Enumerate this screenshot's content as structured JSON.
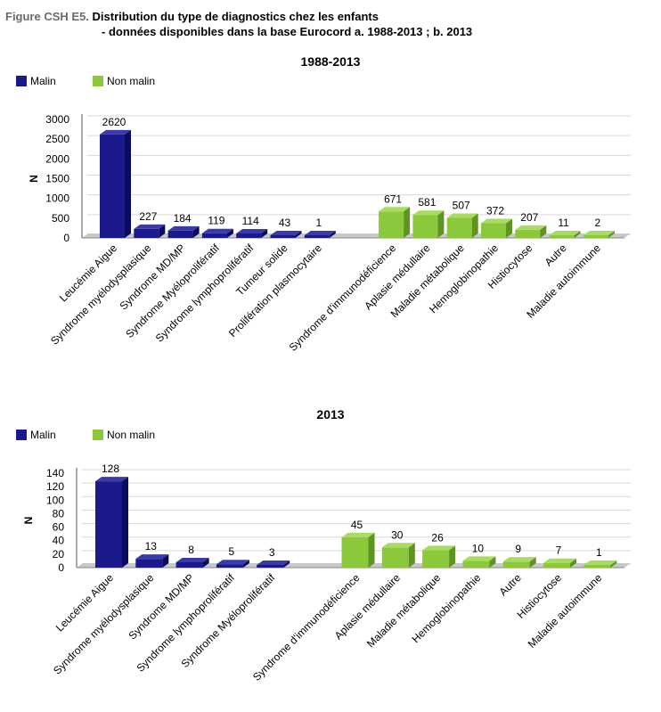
{
  "figure": {
    "label": "Figure CSH E5.",
    "title_line1": "Distribution du type de diagnostics chez les enfants",
    "title_line2": "- données disponibles dans la base Eurocord a. 1988-2013 ; b. 2013"
  },
  "colors": {
    "malin": "#1a1a8c",
    "malin_side": "#0b0b5c",
    "malin_top": "#3a3aa8",
    "non_malin": "#8cc83c",
    "non_malin_side": "#5f9422",
    "non_malin_top": "#a8dc60",
    "grid": "#d9d9d9",
    "floor": "#c8c8c8"
  },
  "chart_data": [
    {
      "type": "bar",
      "title": "1988-2013",
      "ylabel": "N",
      "ylim": [
        0,
        3000
      ],
      "yticks": [
        0,
        500,
        1000,
        1500,
        2000,
        2500,
        3000
      ],
      "legend": [
        "Malin",
        "Non malin"
      ],
      "legend_position": "top-left",
      "categories": [
        "Leucémie Aigue",
        "Syndrome myélodysplasique",
        "Syndrome MD/MP",
        "Syndrome Myéloprolifératif",
        "Syndrome lymphoprolifératif",
        "Tumeur solide",
        "Prolifération plasmocytaire",
        "Syndrome d'immunodéficience",
        "Aplasie médullaire",
        "Maladie métabolique",
        "Hemoglobinopathie",
        "Histiocytose",
        "Autre",
        "Maladie autoimmune"
      ],
      "values": [
        2620,
        227,
        184,
        119,
        114,
        43,
        1,
        671,
        581,
        507,
        372,
        207,
        11,
        2
      ],
      "value_labels": [
        "2620",
        "227",
        "184",
        "119",
        "114",
        "43",
        "1",
        "671",
        "581",
        "507",
        "372",
        "207",
        "11",
        "2"
      ],
      "groups": [
        "Malin",
        "Malin",
        "Malin",
        "Malin",
        "Malin",
        "Malin",
        "Malin",
        "Non malin",
        "Non malin",
        "Non malin",
        "Non malin",
        "Non malin",
        "Non malin",
        "Non malin"
      ]
    },
    {
      "type": "bar",
      "title": "2013",
      "ylabel": "N",
      "ylim": [
        0,
        140
      ],
      "yticks": [
        0,
        20,
        40,
        60,
        80,
        100,
        120,
        140
      ],
      "legend": [
        "Malin",
        "Non malin"
      ],
      "legend_position": "top-left",
      "categories": [
        "Leucémie Aigue",
        "Syndrome myélodysplasique",
        "Syndrome MD/MP",
        "Syndrome lymphoprolifératif",
        "Syndrome Myéloprolifératif",
        "Syndrome d'immunodéficience",
        "Aplasie médullaire",
        "Maladie métabolique",
        "Hemoglobinopathie",
        "Autre",
        "Histiocytose",
        "Maladie autoimmune"
      ],
      "values": [
        128,
        13,
        8,
        5,
        3,
        45,
        30,
        26,
        10,
        9,
        7,
        1
      ],
      "value_labels": [
        "128",
        "13",
        "8",
        "5",
        "3",
        "45",
        "30",
        "26",
        "10",
        "9",
        "7",
        "1"
      ],
      "groups": [
        "Malin",
        "Malin",
        "Malin",
        "Malin",
        "Malin",
        "Non malin",
        "Non malin",
        "Non malin",
        "Non malin",
        "Non malin",
        "Non malin",
        "Non malin"
      ]
    }
  ]
}
